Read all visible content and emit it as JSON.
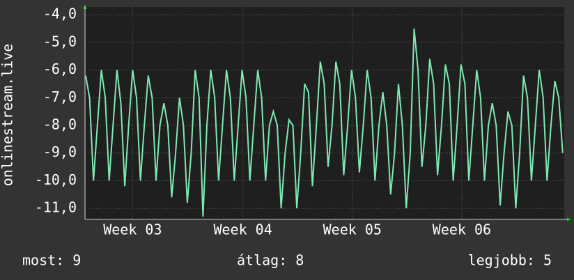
{
  "chart_data": {
    "type": "line",
    "y_label": "onlinestream.live",
    "x": [
      0,
      0.25,
      0.5,
      0.75,
      1,
      1.25,
      1.5,
      1.75,
      2,
      2.25,
      2.5,
      2.75,
      3,
      3.25,
      3.5,
      3.75,
      4,
      4.25,
      4.5,
      4.75,
      5,
      5.25,
      5.5,
      5.75,
      6,
      6.25,
      6.5,
      6.75,
      7,
      7.25,
      7.5,
      7.75,
      8,
      8.25,
      8.5,
      8.75,
      9,
      9.25,
      9.5,
      9.75,
      10,
      10.25,
      10.5,
      10.75,
      11,
      11.25,
      11.5,
      11.75,
      12,
      12.25,
      12.5,
      12.75,
      13,
      13.25,
      13.5,
      13.75,
      14,
      14.25,
      14.5,
      14.75,
      15,
      15.25,
      15.5,
      15.75,
      16,
      16.25,
      16.5,
      16.75,
      17,
      17.25,
      17.5,
      17.75,
      18,
      18.25,
      18.5,
      18.75,
      19,
      19.25,
      19.5,
      19.75,
      20,
      20.25,
      20.5,
      20.75,
      21,
      21.25,
      21.5,
      21.75,
      22,
      22.25,
      22.5,
      22.75,
      23,
      23.25,
      23.5,
      23.75,
      24,
      24.25,
      24.5,
      24.75,
      25,
      25.25,
      25.5,
      25.75,
      26,
      26.25,
      26.5,
      26.75,
      27,
      27.25,
      27.5,
      27.75,
      28,
      28.25,
      28.5,
      28.75,
      29,
      29.25,
      29.5,
      29.75,
      30,
      30.25,
      30.5
    ],
    "series": [
      {
        "color": "#7fe8b2",
        "values": [
          -6.2,
          -7.0,
          -10.0,
          -8.0,
          -6.0,
          -7.0,
          -10.0,
          -8.0,
          -6.0,
          -7.2,
          -10.2,
          -8.0,
          -6.0,
          -7.0,
          -10.0,
          -8.0,
          -6.2,
          -7.0,
          -10.0,
          -8.0,
          -7.2,
          -8.0,
          -10.6,
          -9.0,
          -7.0,
          -8.0,
          -10.8,
          -9.0,
          -6.0,
          -7.0,
          -11.3,
          -8.0,
          -6.0,
          -7.0,
          -10.0,
          -8.0,
          -6.0,
          -7.0,
          -10.0,
          -8.0,
          -6.0,
          -7.0,
          -10.0,
          -8.0,
          -6.0,
          -7.0,
          -10.0,
          -8.0,
          -7.5,
          -8.0,
          -11.0,
          -9.0,
          -7.8,
          -8.0,
          -11.0,
          -9.0,
          -6.5,
          -6.8,
          -10.2,
          -8.0,
          -5.7,
          -6.5,
          -9.5,
          -8.0,
          -5.7,
          -6.5,
          -9.8,
          -8.0,
          -6.0,
          -7.0,
          -9.7,
          -8.0,
          -6.0,
          -7.0,
          -10.0,
          -8.0,
          -6.8,
          -8.0,
          -10.5,
          -9.0,
          -6.5,
          -8.0,
          -11.0,
          -9.0,
          -4.5,
          -6.0,
          -9.5,
          -8.0,
          -5.6,
          -6.5,
          -9.8,
          -8.0,
          -5.8,
          -6.5,
          -10.0,
          -8.0,
          -5.8,
          -6.5,
          -10.0,
          -8.0,
          -6.0,
          -7.0,
          -10.0,
          -8.0,
          -7.2,
          -8.0,
          -10.9,
          -9.0,
          -7.5,
          -8.0,
          -11.0,
          -9.0,
          -6.2,
          -7.0,
          -10.0,
          -8.0,
          -6.0,
          -7.0,
          -10.0,
          -8.0,
          -6.4,
          -7.0,
          -9.0
        ]
      }
    ],
    "xlim": [
      0,
      30.6
    ],
    "xticks": [
      {
        "value": 3.0,
        "label": "Week 03"
      },
      {
        "value": 10.05,
        "label": "Week 04"
      },
      {
        "value": 17.05,
        "label": "Week 05"
      },
      {
        "value": 24.05,
        "label": "Week 06"
      }
    ],
    "ylim": [
      -11.4,
      -3.72
    ],
    "yticks": [
      {
        "value": -4,
        "label": "-4,0"
      },
      {
        "value": -5,
        "label": "-5,0"
      },
      {
        "value": -6,
        "label": "-6,0"
      },
      {
        "value": -7,
        "label": "-7,0"
      },
      {
        "value": -8,
        "label": "-8,0"
      },
      {
        "value": -9,
        "label": "-9,0"
      },
      {
        "value": -10,
        "label": "-10,0"
      },
      {
        "value": -11,
        "label": "-11,0"
      }
    ],
    "grid": true,
    "footer": [
      "most: 9",
      "átlag: 8",
      "legjobb: 5"
    ]
  }
}
